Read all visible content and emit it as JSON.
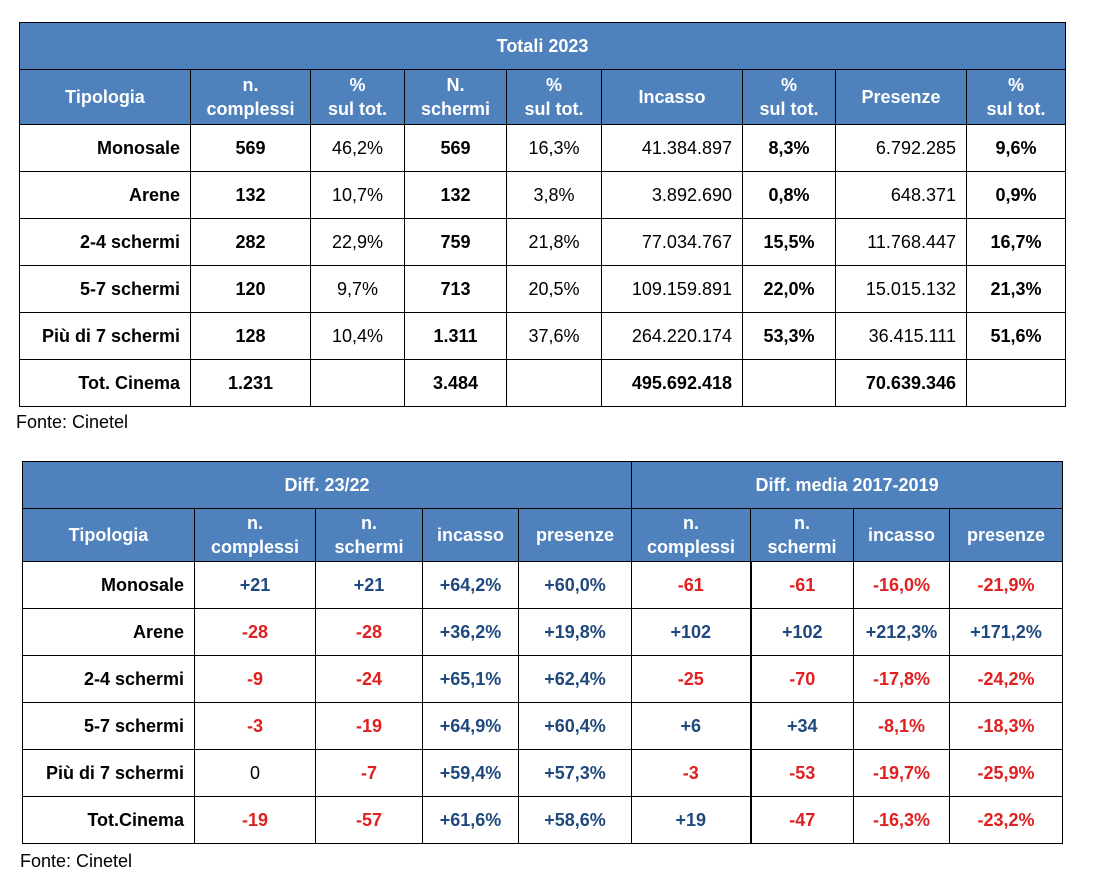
{
  "table1": {
    "title": "Totali 2023",
    "headers": [
      "Tipologia",
      "n.\ncomplessi",
      "%\nsul tot.",
      "N.\nschermi",
      "%\nsul tot.",
      "Incasso",
      "%\nsul tot.",
      "Presenze",
      "%\nsul tot."
    ],
    "rows": [
      [
        "Monosale",
        "569",
        "46,2%",
        "569",
        "16,3%",
        "41.384.897",
        "8,3%",
        "6.792.285",
        "9,6%"
      ],
      [
        "Arene",
        "132",
        "10,7%",
        "132",
        "3,8%",
        "3.892.690",
        "0,8%",
        "648.371",
        "0,9%"
      ],
      [
        "2-4 schermi",
        "282",
        "22,9%",
        "759",
        "21,8%",
        "77.034.767",
        "15,5%",
        "11.768.447",
        "16,7%"
      ],
      [
        "5-7 schermi",
        "120",
        "9,7%",
        "713",
        "20,5%",
        "109.159.891",
        "22,0%",
        "15.015.132",
        "21,3%"
      ],
      [
        "Più di 7 schermi",
        "128",
        "10,4%",
        "1.311",
        "37,6%",
        "264.220.174",
        "53,3%",
        "36.415.111",
        "51,6%"
      ],
      [
        "Tot. Cinema",
        "1.231",
        "",
        "3.484",
        "",
        "495.692.418",
        "",
        "70.639.346",
        ""
      ]
    ],
    "source": "Fonte: Cinetel"
  },
  "table2": {
    "group1": "Diff. 23/22",
    "group2": "Diff. media 2017-2019",
    "headers": [
      "Tipologia",
      "n.\ncomplessi",
      "n.\nschermi",
      "incasso",
      "presenze",
      "n.\ncomplessi",
      "n.\nschermi",
      "incasso",
      "presenze"
    ],
    "rows": [
      [
        "Monosale",
        "+21",
        "+21",
        "+64,2%",
        "+60,0%",
        "-61",
        "-61",
        "-16,0%",
        "-21,9%"
      ],
      [
        "Arene",
        "-28",
        "-28",
        "+36,2%",
        "+19,8%",
        "+102",
        "+102",
        "+212,3%",
        "+171,2%"
      ],
      [
        "2-4 schermi",
        "-9",
        "-24",
        "+65,1%",
        "+62,4%",
        "-25",
        "-70",
        "-17,8%",
        "-24,2%"
      ],
      [
        "5-7 schermi",
        "-3",
        "-19",
        "+64,9%",
        "+60,4%",
        "+6",
        "+34",
        "-8,1%",
        "-18,3%"
      ],
      [
        "Più di 7 schermi",
        "0",
        "-7",
        "+59,4%",
        "+57,3%",
        "-3",
        "-53",
        "-19,7%",
        "-25,9%"
      ],
      [
        "Tot.Cinema",
        "-19",
        "-57",
        "+61,6%",
        "+58,6%",
        "+19",
        "-47",
        "-16,3%",
        "-23,2%"
      ]
    ],
    "source": "Fonte: Cinetel"
  },
  "colors": {
    "header_bg": "#4f81bd",
    "positive": "#1f497d",
    "negative": "#e02020"
  }
}
